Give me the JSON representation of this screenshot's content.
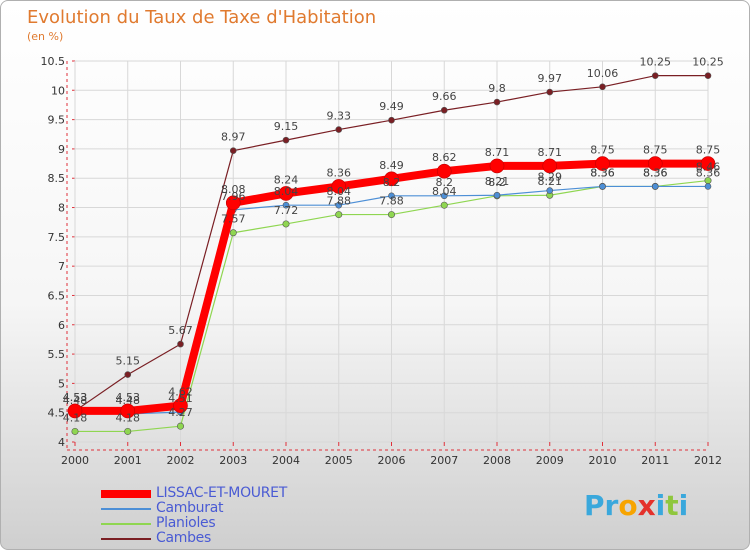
{
  "chart_data": {
    "type": "line",
    "title": "Evolution du Taux de Taxe d'Habitation",
    "ylabel": "(en %)",
    "xlabel": "",
    "categories": [
      "2000",
      "2001",
      "2002",
      "2003",
      "2004",
      "2005",
      "2006",
      "2007",
      "2008",
      "2009",
      "2010",
      "2011",
      "2012"
    ],
    "ylim": [
      4,
      10.5
    ],
    "yticks": [
      4,
      4.5,
      5,
      5.5,
      6,
      6.5,
      7,
      7.5,
      8,
      8.5,
      9,
      9.5,
      10,
      10.5
    ],
    "ytick_labels": [
      "4",
      "4.5",
      "5",
      "5.5",
      "6",
      "6.5",
      "7",
      "7.5",
      "8",
      "8.5",
      "9",
      "9.5",
      "10",
      "10.5"
    ],
    "grid": true,
    "legend_position": "bottom-left",
    "series": [
      {
        "name": "LISSAC-ET-MOURET",
        "color": "#ff0000",
        "values": [
          4.53,
          4.53,
          4.62,
          8.08,
          8.24,
          8.36,
          8.49,
          8.62,
          8.71,
          8.71,
          8.75,
          8.75,
          8.75
        ],
        "labels": [
          "4.53",
          "4.53",
          "4.62",
          "8.08",
          "8.24",
          "8.36",
          "8.49",
          "8.62",
          "8.71",
          "8.71",
          "8.75",
          "8.75",
          "8.75"
        ]
      },
      {
        "name": "Camburat",
        "color": "#4d8fd6",
        "values": [
          4.48,
          4.48,
          4.51,
          7.96,
          8.04,
          8.04,
          8.2,
          8.2,
          8.21,
          8.29,
          8.36,
          8.36,
          8.36
        ],
        "labels": [
          "4.48",
          "4.48",
          "4.51",
          "7.96",
          "8.04",
          "8.04",
          "8.2",
          "8.2",
          "8.21",
          "8.29",
          "8.36",
          "8.36",
          "8.36"
        ]
      },
      {
        "name": "Planioles",
        "color": "#8fd651",
        "values": [
          4.18,
          4.18,
          4.27,
          7.57,
          7.72,
          7.88,
          7.88,
          8.04,
          8.2,
          8.21,
          8.36,
          8.36,
          8.46
        ],
        "labels": [
          "4.18",
          "4.18",
          "4.27",
          "7.57",
          "7.72",
          "7.88",
          "7.88",
          "8.04",
          "8.2",
          "8.21",
          "8.36",
          "8.36",
          "8.46"
        ]
      },
      {
        "name": "Cambes",
        "color": "#7a1f24",
        "values": [
          4.53,
          5.15,
          5.67,
          8.97,
          9.15,
          9.33,
          9.49,
          9.66,
          9.8,
          9.97,
          10.06,
          10.25,
          10.25
        ],
        "labels": [
          "4.53",
          "5.15",
          "5.67",
          "8.97",
          "9.15",
          "9.33",
          "9.49",
          "9.66",
          "9.8",
          "9.97",
          "10.06",
          "10.25",
          "10.25"
        ]
      }
    ]
  },
  "brand": {
    "letters": [
      "P",
      "r",
      "o",
      "x",
      "i",
      "t",
      "i"
    ],
    "colors": [
      "#3aa8dc",
      "#3aa8dc",
      "#f7a400",
      "#e4312b",
      "#3aa8dc",
      "#8fc73e",
      "#3aa8dc"
    ]
  }
}
